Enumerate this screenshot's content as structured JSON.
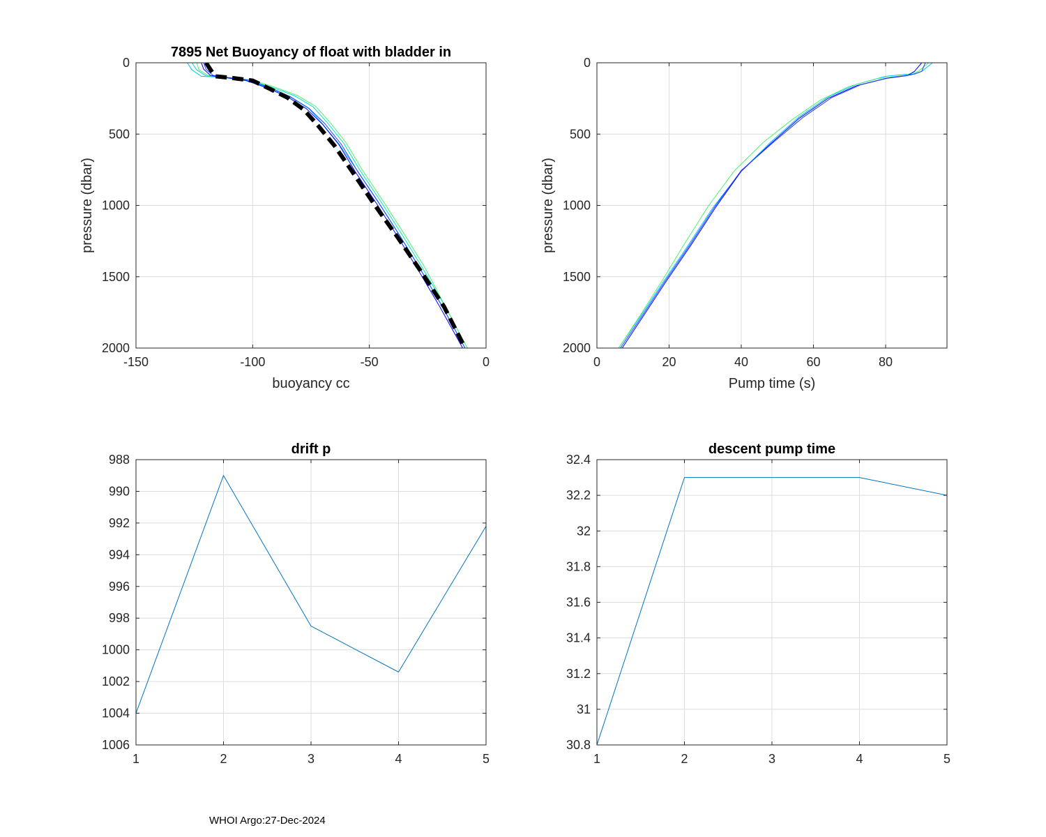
{
  "footer": "WHOI Argo:27-Dec-2024",
  "chart_data": [
    {
      "id": "p1",
      "type": "line",
      "title": "7895 Net Buoyancy of float with bladder in",
      "xlabel": "buoyancy cc",
      "ylabel": "pressure (dbar)",
      "xlim": [
        -150,
        0
      ],
      "ylim": [
        0,
        2000
      ],
      "y_reversed": true,
      "grid": true,
      "xticks": [
        "-150",
        "-100",
        "-50",
        "0"
      ],
      "yticks": [
        "0",
        "500",
        "1000",
        "1500",
        "2000"
      ],
      "series": [
        {
          "color": "#00bfff",
          "width": 1,
          "x": [
            -128,
            -126,
            -122,
            -114,
            -103,
            -93,
            -84,
            -76,
            -70,
            -63,
            -55,
            -46,
            -37,
            -28,
            -19,
            -9
          ],
          "y": [
            0,
            50,
            95,
            100,
            125,
            175,
            240,
            320,
            430,
            570,
            760,
            980,
            1210,
            1450,
            1700,
            2000
          ]
        },
        {
          "color": "#00e0d0",
          "width": 1,
          "x": [
            -126,
            -124,
            -120,
            -113,
            -102,
            -92,
            -82,
            -74,
            -68,
            -61,
            -54,
            -45,
            -36,
            -27,
            -18,
            -8
          ],
          "y": [
            0,
            50,
            92,
            100,
            122,
            170,
            232,
            310,
            420,
            565,
            755,
            975,
            1205,
            1445,
            1695,
            2000
          ]
        },
        {
          "color": "#50f070",
          "width": 1,
          "x": [
            -124,
            -123,
            -119,
            -112,
            -101,
            -91,
            -81,
            -73,
            -67,
            -60,
            -53,
            -44,
            -35,
            -26,
            -18,
            -8
          ],
          "y": [
            0,
            50,
            90,
            100,
            120,
            168,
            228,
            305,
            415,
            560,
            752,
            972,
            1202,
            1442,
            1692,
            2000
          ]
        },
        {
          "color": "#0000ff",
          "width": 1,
          "x": [
            -122,
            -121,
            -118,
            -113,
            -103,
            -94,
            -85,
            -77,
            -70,
            -63,
            -56,
            -47,
            -38,
            -29,
            -20,
            -10
          ],
          "y": [
            0,
            45,
            90,
            100,
            123,
            175,
            240,
            322,
            432,
            575,
            765,
            985,
            1215,
            1455,
            1705,
            2000
          ]
        },
        {
          "color": "#1f3cff",
          "width": 1,
          "x": [
            -121,
            -120,
            -117,
            -112,
            -102,
            -93,
            -84,
            -76,
            -69,
            -62,
            -55,
            -46,
            -37,
            -28,
            -19,
            -9
          ],
          "y": [
            0,
            45,
            88,
            100,
            121,
            172,
            236,
            318,
            428,
            572,
            762,
            982,
            1212,
            1452,
            1702,
            2000
          ]
        },
        {
          "color": "#000000",
          "width": 6,
          "dash": "16,8",
          "x": [
            -120,
            -118,
            -116,
            -108,
            -100,
            -93,
            -85,
            -78,
            -72,
            -65,
            -57,
            -48,
            -38,
            -28,
            -18,
            -9
          ],
          "y": [
            0,
            50,
            95,
            108,
            125,
            180,
            245,
            330,
            440,
            580,
            770,
            990,
            1220,
            1460,
            1710,
            2000
          ]
        }
      ]
    },
    {
      "id": "p2",
      "type": "line",
      "title": "",
      "xlabel": "Pump time (s)",
      "ylabel": "pressure (dbar)",
      "xlim": [
        0,
        97
      ],
      "ylim": [
        0,
        2000
      ],
      "y_reversed": true,
      "grid": true,
      "xticks": [
        "0",
        "20",
        "40",
        "60",
        "80"
      ],
      "xtick_values": [
        0,
        20,
        40,
        60,
        80
      ],
      "yticks": [
        "0",
        "500",
        "1000",
        "1500",
        "2000"
      ],
      "series": [
        {
          "color": "#00bfff",
          "width": 1,
          "x": [
            6,
            12,
            18,
            25,
            32,
            40,
            48,
            56,
            64,
            72,
            80,
            86,
            88,
            90,
            93,
            95,
            97
          ],
          "y": [
            2000,
            1780,
            1550,
            1290,
            1020,
            760,
            560,
            380,
            240,
            150,
            95,
            80,
            80,
            60,
            0,
            0,
            0
          ]
        },
        {
          "color": "#50f070",
          "width": 1,
          "x": [
            6,
            12,
            18,
            24,
            31,
            38,
            46,
            54,
            62,
            70,
            78,
            85,
            89,
            92
          ],
          "y": [
            2000,
            1770,
            1530,
            1280,
            1000,
            760,
            560,
            400,
            260,
            165,
            110,
            90,
            60,
            0
          ]
        },
        {
          "color": "#0000ff",
          "width": 1,
          "x": [
            7,
            13,
            19,
            26,
            33,
            40,
            48,
            56,
            64,
            72,
            80,
            86,
            88,
            90
          ],
          "y": [
            2000,
            1770,
            1540,
            1280,
            1010,
            760,
            570,
            390,
            250,
            160,
            110,
            90,
            60,
            0
          ]
        },
        {
          "color": "#1f3cff",
          "width": 1,
          "x": [
            6.5,
            12.5,
            18.5,
            25.5,
            32.5,
            40,
            49,
            57,
            65,
            73,
            81,
            87,
            90,
            91
          ],
          "y": [
            2000,
            1775,
            1545,
            1285,
            1015,
            755,
            555,
            385,
            245,
            155,
            105,
            85,
            60,
            0
          ]
        }
      ]
    },
    {
      "id": "p3",
      "type": "line",
      "title": "drift p",
      "xlabel": "",
      "ylabel": "",
      "xlim": [
        1,
        5
      ],
      "ylim": [
        988,
        1006
      ],
      "y_reversed": true,
      "grid": true,
      "xticks": [
        "1",
        "2",
        "3",
        "4",
        "5"
      ],
      "yticks": [
        "988",
        "990",
        "992",
        "994",
        "996",
        "998",
        "1000",
        "1002",
        "1004",
        "1006"
      ],
      "series": [
        {
          "color": "#0072bd",
          "width": 1,
          "x": [
            1,
            2,
            3,
            4,
            5
          ],
          "y": [
            1004,
            989,
            998.5,
            1001.4,
            992.2
          ]
        }
      ]
    },
    {
      "id": "p4",
      "type": "line",
      "title": "descent pump time",
      "xlabel": "",
      "ylabel": "",
      "xlim": [
        1,
        5
      ],
      "ylim": [
        30.8,
        32.4
      ],
      "y_reversed": false,
      "grid": true,
      "xticks": [
        "1",
        "2",
        "3",
        "4",
        "5"
      ],
      "yticks": [
        "30.8",
        "31",
        "31.2",
        "31.4",
        "31.6",
        "31.8",
        "32",
        "32.2",
        "32.4"
      ],
      "series": [
        {
          "color": "#0072bd",
          "width": 1,
          "x": [
            1,
            2,
            3,
            4,
            5
          ],
          "y": [
            30.8,
            32.3,
            32.3,
            32.3,
            32.2
          ]
        }
      ]
    }
  ]
}
